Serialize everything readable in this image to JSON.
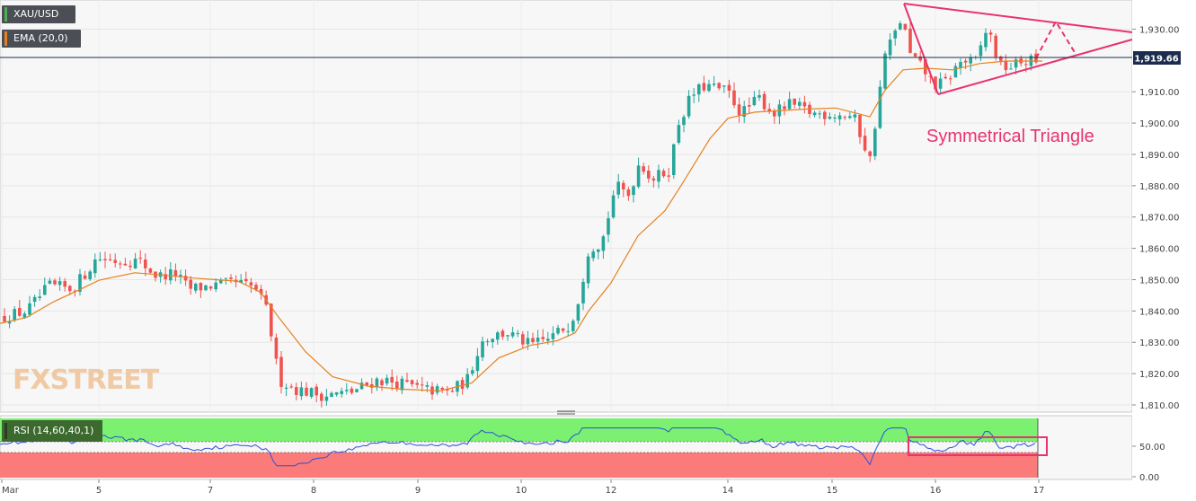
{
  "legend": {
    "symbol": "XAU/USD",
    "symbol_color": "#4caf50",
    "ema": "EMA (20,0)",
    "ema_color": "#e5821f",
    "rsi": "RSI (14,60,40,1)"
  },
  "watermark": "FXSTREET",
  "annotation": "Symmetrical Triangle",
  "current_price": "1,919.66",
  "colors": {
    "up": "#26a69a",
    "down": "#ef5350",
    "ema": "#e5821f",
    "triangle": "#e8336d",
    "rsi_line": "#2b50d8",
    "rsi_upper_zone": "#7bf071",
    "rsi_lower_zone": "#fb7b7b",
    "price_label_bg": "#1b2c4d"
  },
  "chart_data": [
    {
      "type": "candlestick",
      "title": "XAU/USD",
      "x_ticks": [
        "Mar",
        "5",
        "7",
        "8",
        "9",
        "10",
        "12",
        "14",
        "15",
        "16",
        "17"
      ],
      "y_ticks": [
        "1,810.00",
        "1,820.00",
        "1,830.00",
        "1,840.00",
        "1,850.00",
        "1,860.00",
        "1,870.00",
        "1,880.00",
        "1,890.00",
        "1,900.00",
        "1,910.00",
        "1,930.00"
      ],
      "ylim": [
        1808.0,
        1938.5
      ],
      "current_price": 1919.66,
      "series": [
        {
          "name": "EMA (20,0)",
          "values": [
            [
              0,
              1836.0
            ],
            [
              30,
              1838.0
            ],
            [
              60,
              1843.0
            ],
            [
              90,
              1847.0
            ],
            [
              110,
              1849.8
            ],
            [
              150,
              1852.2
            ],
            [
              180,
              1851.5
            ],
            [
              215,
              1850.5
            ],
            [
              240,
              1850.0
            ],
            [
              265,
              1849.5
            ],
            [
              290,
              1846.0
            ],
            [
              310,
              1838.0
            ],
            [
              340,
              1827.0
            ],
            [
              370,
              1819.0
            ],
            [
              410,
              1816.0
            ],
            [
              450,
              1815.0
            ],
            [
              490,
              1814.5
            ],
            [
              525,
              1817.0
            ],
            [
              555,
              1825.0
            ],
            [
              590,
              1829.0
            ],
            [
              620,
              1830.5
            ],
            [
              640,
              1833.0
            ],
            [
              655,
              1840.0
            ],
            [
              680,
              1849.0
            ],
            [
              710,
              1864.0
            ],
            [
              740,
              1872.0
            ],
            [
              760,
              1881.0
            ],
            [
              790,
              1895.0
            ],
            [
              810,
              1901.5
            ],
            [
              840,
              1903.5
            ],
            [
              870,
              1904.0
            ],
            [
              900,
              1904.5
            ],
            [
              930,
              1904.8
            ],
            [
              955,
              1903.0
            ],
            [
              968,
              1902.0
            ],
            [
              985,
              1910.5
            ],
            [
              1005,
              1917.0
            ],
            [
              1030,
              1917.5
            ],
            [
              1060,
              1917.0
            ],
            [
              1090,
              1919.0
            ],
            [
              1120,
              1919.8
            ],
            [
              1160,
              1919.8
            ]
          ]
        }
      ],
      "candles_note": "intraday OHLC candles, approx. 205 bars from Mar 4 to Mar 17"
    },
    {
      "type": "line",
      "title": "RSI (14,60,40,1)",
      "y_ticks": [
        "0.00",
        "50.00"
      ],
      "ylim": [
        0,
        100
      ],
      "levels": [
        60,
        40
      ]
    }
  ]
}
